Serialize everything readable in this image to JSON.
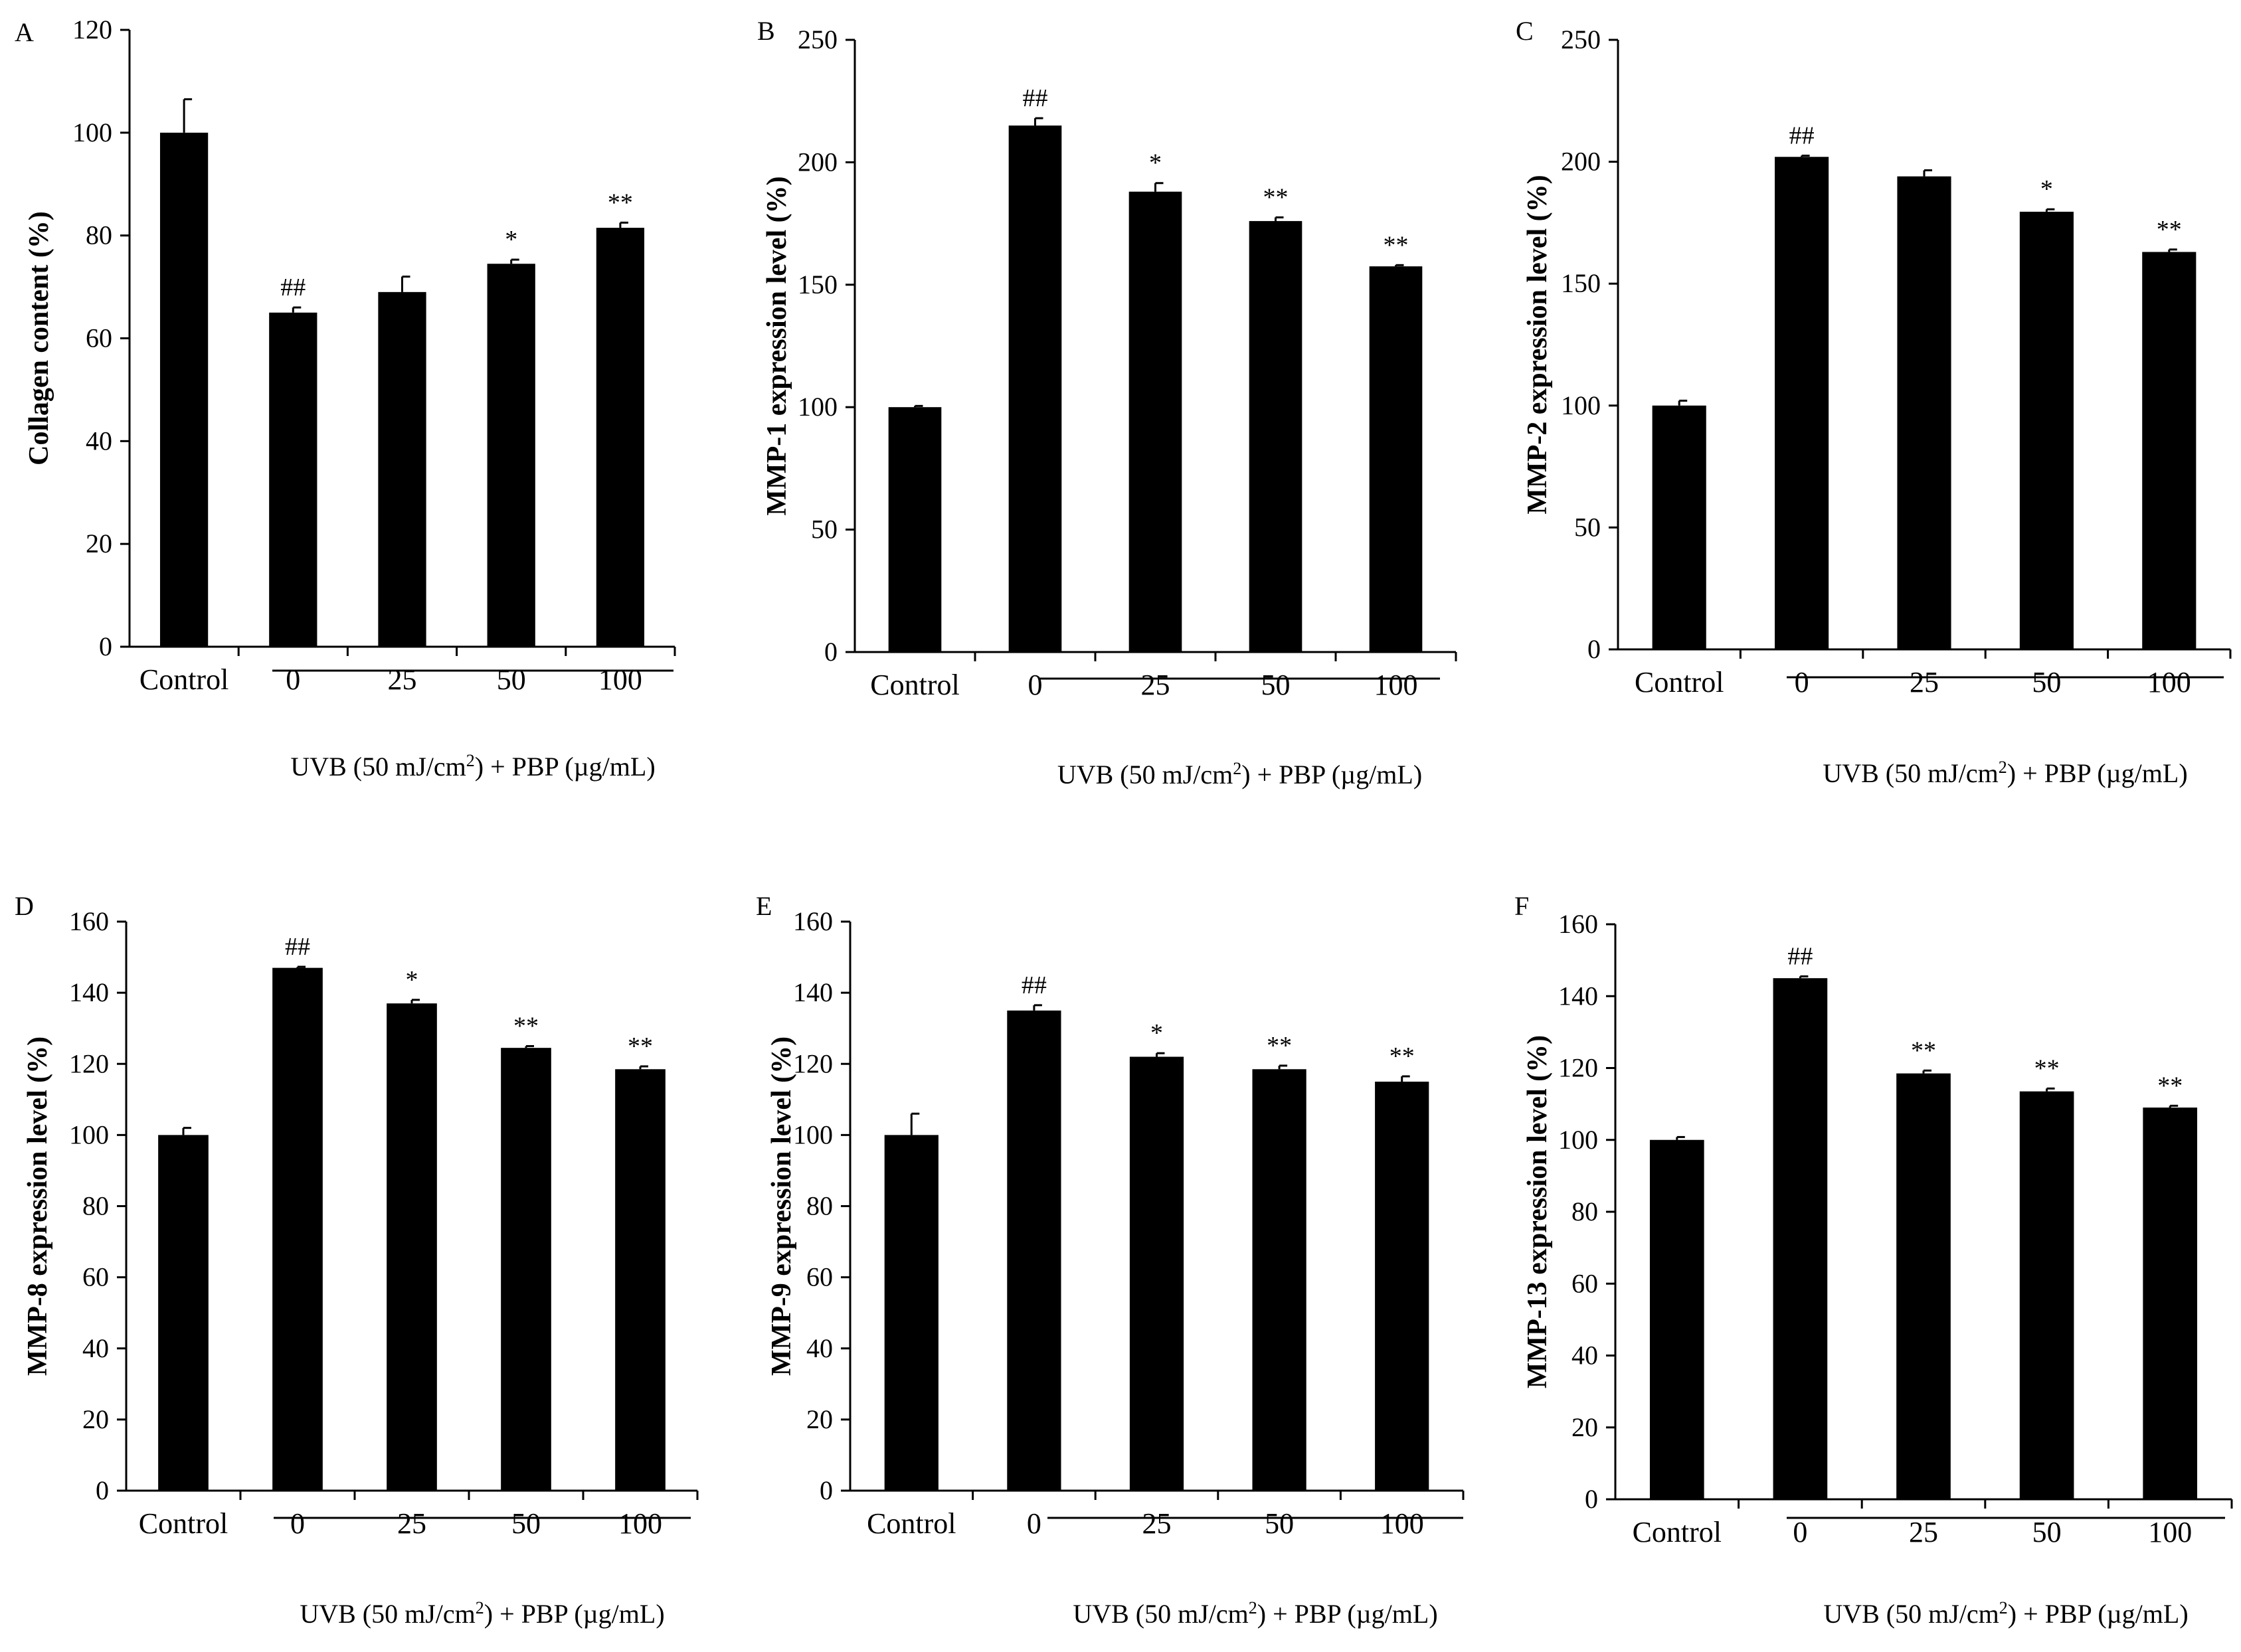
{
  "figure": {
    "group_label_text": "UVB (50 mJ/cm",
    "group_label_sup": "2",
    "group_label_tail": ") + PBP (µg/mL)"
  },
  "chart_data": [
    {
      "panel": "A",
      "type": "bar",
      "ylabel": "Collagen content (%)",
      "ylim": [
        0,
        120
      ],
      "yticks": [
        0,
        20,
        40,
        60,
        80,
        100,
        120
      ],
      "categories": [
        "Control",
        "0",
        "25",
        "50",
        "100"
      ],
      "values": [
        100,
        65,
        69,
        74.5,
        81.5
      ],
      "errors": [
        6.5,
        1,
        3,
        0.8,
        1
      ],
      "significance": [
        "",
        "##",
        "",
        "*",
        "**"
      ],
      "group_label": "UVB (50 mJ/cm2) + PBP (µg/mL)"
    },
    {
      "panel": "B",
      "type": "bar",
      "ylabel": "MMP-1 expression level (%)",
      "ylim": [
        0,
        250
      ],
      "yticks": [
        0,
        50,
        100,
        150,
        200,
        250
      ],
      "categories": [
        "Control",
        "0",
        "25",
        "50",
        "100"
      ],
      "values": [
        100,
        215,
        188,
        176,
        157.5
      ],
      "errors": [
        0.5,
        3,
        3.5,
        1.5,
        0.5
      ],
      "significance": [
        "",
        "##",
        "*",
        "**",
        "**"
      ],
      "group_label": "UVB (50 mJ/cm2) + PBP (µg/mL)"
    },
    {
      "panel": "C",
      "type": "bar",
      "ylabel": "MMP-2 expression level (%)",
      "ylim": [
        0,
        250
      ],
      "yticks": [
        0,
        50,
        100,
        150,
        200,
        250
      ],
      "categories": [
        "Control",
        "0",
        "25",
        "50",
        "100"
      ],
      "values": [
        100,
        202,
        194,
        179.5,
        163
      ],
      "errors": [
        2,
        0.5,
        2.5,
        1,
        1
      ],
      "significance": [
        "",
        "##",
        "",
        "*",
        "**"
      ],
      "group_label": "UVB (50 mJ/cm2) + PBP (µg/mL)"
    },
    {
      "panel": "D",
      "type": "bar",
      "ylabel": "MMP-8 expression level (%)",
      "ylim": [
        0,
        160
      ],
      "yticks": [
        0,
        20,
        40,
        60,
        80,
        100,
        120,
        140,
        160
      ],
      "categories": [
        "Control",
        "0",
        "25",
        "50",
        "100"
      ],
      "values": [
        100,
        147,
        137,
        124.5,
        118.5
      ],
      "errors": [
        2,
        0.3,
        1,
        0.5,
        0.8
      ],
      "significance": [
        "",
        "##",
        "*",
        "**",
        "**"
      ],
      "group_label": "UVB (50 mJ/cm2) + PBP (µg/mL)"
    },
    {
      "panel": "E",
      "type": "bar",
      "ylabel": "MMP-9 expression level (%)",
      "ylim": [
        0,
        160
      ],
      "yticks": [
        0,
        20,
        40,
        60,
        80,
        100,
        120,
        140,
        160
      ],
      "categories": [
        "Control",
        "0",
        "25",
        "50",
        "100"
      ],
      "values": [
        100,
        135,
        122,
        118.5,
        115
      ],
      "errors": [
        6,
        1.5,
        1,
        1,
        1.5
      ],
      "significance": [
        "",
        "##",
        "*",
        "**",
        "**"
      ],
      "group_label": "UVB (50 mJ/cm2) + PBP (µg/mL)"
    },
    {
      "panel": "F",
      "type": "bar",
      "ylabel": "MMP-13 expression level (%)",
      "ylim": [
        0,
        160
      ],
      "yticks": [
        0,
        20,
        40,
        60,
        80,
        100,
        120,
        140,
        160
      ],
      "categories": [
        "Control",
        "0",
        "25",
        "50",
        "100"
      ],
      "values": [
        100,
        145,
        118.5,
        113.5,
        109
      ],
      "errors": [
        0.8,
        0.5,
        0.8,
        0.8,
        0.5
      ],
      "significance": [
        "",
        "##",
        "**",
        "**",
        "**"
      ],
      "group_label": "UVB (50 mJ/cm2) + PBP (µg/mL)"
    }
  ]
}
